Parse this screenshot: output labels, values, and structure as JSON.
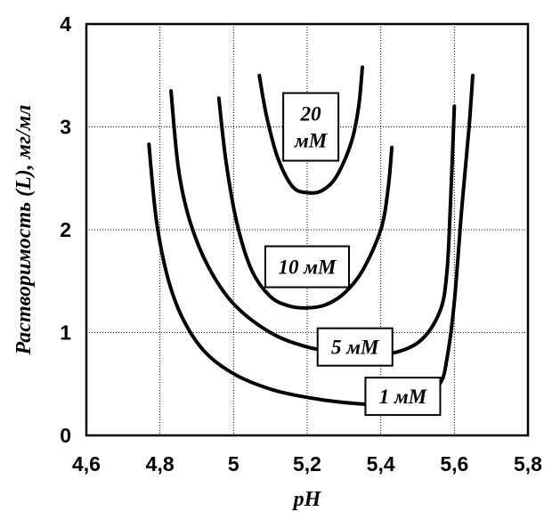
{
  "chart_data": {
    "type": "line",
    "xlabel": "pH",
    "ylabel": "Растворимость (L), мг/мл",
    "xlim": [
      4.6,
      5.8
    ],
    "ylim": [
      0,
      4
    ],
    "x_ticks": [
      "4,6",
      "4,8",
      "5",
      "5,2",
      "5,4",
      "5,6",
      "5,8"
    ],
    "y_ticks": [
      "0",
      "1",
      "2",
      "3",
      "4"
    ],
    "grid": true,
    "series": [
      {
        "name": "1 мМ",
        "label_lines": [
          "1 мМ"
        ],
        "points": [
          [
            4.77,
            2.83
          ],
          [
            4.79,
            2.1
          ],
          [
            4.82,
            1.55
          ],
          [
            4.86,
            1.15
          ],
          [
            4.92,
            0.82
          ],
          [
            5.0,
            0.6
          ],
          [
            5.1,
            0.45
          ],
          [
            5.2,
            0.37
          ],
          [
            5.3,
            0.32
          ],
          [
            5.4,
            0.3
          ],
          [
            5.5,
            0.33
          ],
          [
            5.56,
            0.5
          ],
          [
            5.58,
            0.75
          ],
          [
            5.6,
            1.3
          ],
          [
            5.62,
            2.2
          ],
          [
            5.64,
            3.0
          ],
          [
            5.65,
            3.5
          ]
        ]
      },
      {
        "name": "5 мМ",
        "label_lines": [
          "5 мМ"
        ],
        "points": [
          [
            4.83,
            3.35
          ],
          [
            4.85,
            2.6
          ],
          [
            4.88,
            2.1
          ],
          [
            4.93,
            1.65
          ],
          [
            5.0,
            1.28
          ],
          [
            5.1,
            1.0
          ],
          [
            5.2,
            0.86
          ],
          [
            5.3,
            0.8
          ],
          [
            5.4,
            0.78
          ],
          [
            5.5,
            0.9
          ],
          [
            5.56,
            1.2
          ],
          [
            5.58,
            1.6
          ],
          [
            5.59,
            2.3
          ],
          [
            5.6,
            3.2
          ]
        ]
      },
      {
        "name": "10 мМ",
        "label_lines": [
          "10 мМ"
        ],
        "points": [
          [
            4.96,
            3.28
          ],
          [
            4.98,
            2.65
          ],
          [
            5.01,
            2.05
          ],
          [
            5.05,
            1.6
          ],
          [
            5.1,
            1.35
          ],
          [
            5.15,
            1.26
          ],
          [
            5.2,
            1.24
          ],
          [
            5.25,
            1.27
          ],
          [
            5.3,
            1.38
          ],
          [
            5.35,
            1.6
          ],
          [
            5.4,
            2.0
          ],
          [
            5.42,
            2.4
          ],
          [
            5.43,
            2.8
          ]
        ]
      },
      {
        "name": "20 мМ",
        "label_lines": [
          "20",
          "мМ"
        ],
        "points": [
          [
            5.07,
            3.5
          ],
          [
            5.09,
            3.1
          ],
          [
            5.12,
            2.7
          ],
          [
            5.16,
            2.42
          ],
          [
            5.2,
            2.36
          ],
          [
            5.24,
            2.38
          ],
          [
            5.28,
            2.52
          ],
          [
            5.32,
            2.85
          ],
          [
            5.34,
            3.2
          ],
          [
            5.35,
            3.58
          ]
        ]
      }
    ]
  }
}
